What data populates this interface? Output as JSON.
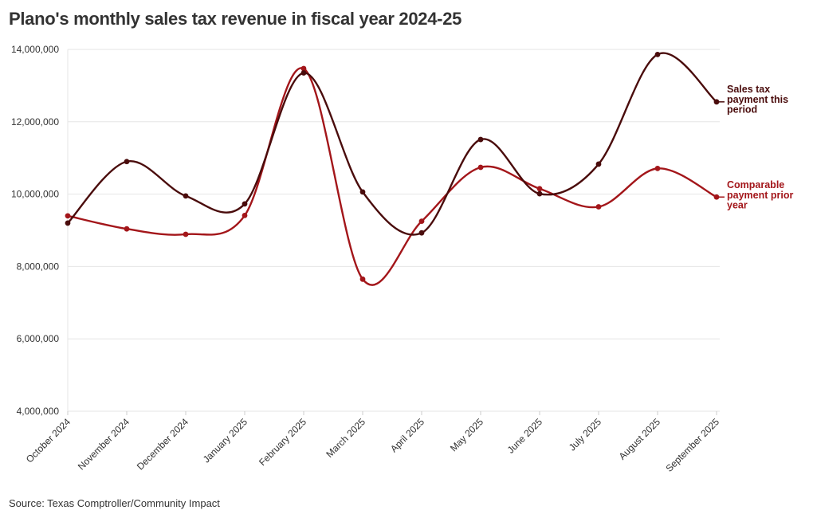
{
  "chart_data": {
    "type": "line",
    "title": "Plano's monthly sales tax revenue in fiscal year 2024-25",
    "source": "Source: Texas Comptroller/Community Impact",
    "xlabel": "",
    "ylabel": "",
    "ylim": [
      4000000,
      14000000
    ],
    "yticks": [
      4000000,
      6000000,
      8000000,
      10000000,
      12000000,
      14000000
    ],
    "ytick_labels": [
      "4,000,000",
      "6,000,000",
      "8,000,000",
      "10,000,000",
      "12,000,000",
      "14,000,000"
    ],
    "grid": true,
    "legend": "right-end labels",
    "categories": [
      "October 2024",
      "November 2024",
      "December 2024",
      "January 2025",
      "February 2025",
      "March 2025",
      "April 2025",
      "May 2025",
      "June 2025",
      "July 2025",
      "August 2025",
      "September 2025"
    ],
    "series": [
      {
        "name": "Sales tax payment this period",
        "label_lines": [
          "Sales tax",
          "payment this",
          "period"
        ],
        "color": "#4a0c0c",
        "values": [
          9200000,
          10900000,
          9950000,
          9730000,
          13350000,
          10060000,
          8930000,
          11510000,
          10010000,
          10830000,
          13860000,
          12550000
        ]
      },
      {
        "name": "Comparable payment prior year",
        "label_lines": [
          "Comparable",
          "payment prior",
          "year"
        ],
        "color": "#a3161a",
        "values": [
          9400000,
          9040000,
          8890000,
          9410000,
          13470000,
          7650000,
          9250000,
          10740000,
          10150000,
          9650000,
          10710000,
          9920000
        ]
      }
    ]
  }
}
